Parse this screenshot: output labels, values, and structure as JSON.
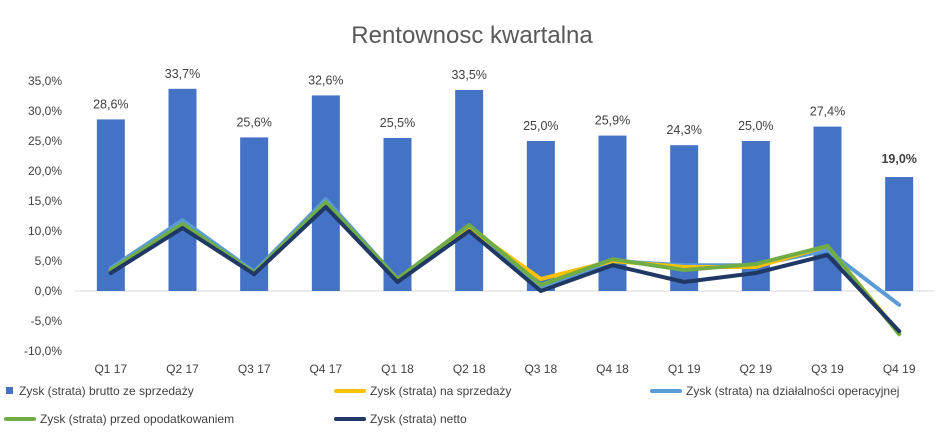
{
  "chart_data": {
    "type": "bar",
    "title": "Rentownosc kwartalna",
    "categories": [
      "Q1 17",
      "Q2 17",
      "Q3 17",
      "Q4 17",
      "Q1 18",
      "Q2 18",
      "Q3 18",
      "Q4 18",
      "Q1 19",
      "Q2 19",
      "Q3 19",
      "Q4 19"
    ],
    "ylim": [
      -10,
      35
    ],
    "yticks": [
      "-10,0%",
      "-5,0%",
      "0,0%",
      "5,0%",
      "10,0%",
      "15,0%",
      "20,0%",
      "25,0%",
      "30,0%",
      "35,0%"
    ],
    "grid": false,
    "legend_position": "bottom",
    "series": [
      {
        "name": "Zysk (strata) brutto ze sprzedaży",
        "kind": "bar",
        "color": "#4472C4",
        "values": [
          28.6,
          33.7,
          25.6,
          32.6,
          25.5,
          33.5,
          25.0,
          25.9,
          24.3,
          25.0,
          27.4,
          19.0
        ],
        "labels": [
          "28,6%",
          "33,7%",
          "25,6%",
          "32,6%",
          "25,5%",
          "33,5%",
          "25,0%",
          "25,9%",
          "24,3%",
          "25,0%",
          "27,4%",
          "19,0%"
        ],
        "highlight_label_color": "#FF0000",
        "highlight_index": 11
      },
      {
        "name": "Zysk (strata) na sprzedaży",
        "kind": "line",
        "color": "#FFC000",
        "values": [
          3.5,
          11.0,
          3.0,
          14.5,
          2.0,
          10.5,
          2.0,
          5.0,
          4.0,
          4.0,
          7.5,
          -7.0
        ]
      },
      {
        "name": "Zysk (strata) na działalności operacyjnej",
        "kind": "line",
        "color": "#5B9BD5",
        "values": [
          3.8,
          11.8,
          3.2,
          15.3,
          2.0,
          10.8,
          0.5,
          5.0,
          4.3,
          4.3,
          6.8,
          -2.3
        ]
      },
      {
        "name": "Zysk (strata) przed opodatkowaniem",
        "kind": "line",
        "color": "#70AD47",
        "values": [
          3.5,
          11.2,
          3.0,
          14.8,
          2.0,
          11.0,
          1.0,
          5.3,
          3.5,
          4.5,
          7.5,
          -7.2
        ]
      },
      {
        "name": "Zysk (strata) netto",
        "kind": "line",
        "color": "#203864",
        "values": [
          3.0,
          10.5,
          2.8,
          14.0,
          1.5,
          10.0,
          0.0,
          4.3,
          1.5,
          3.0,
          6.0,
          -6.7
        ]
      }
    ]
  }
}
